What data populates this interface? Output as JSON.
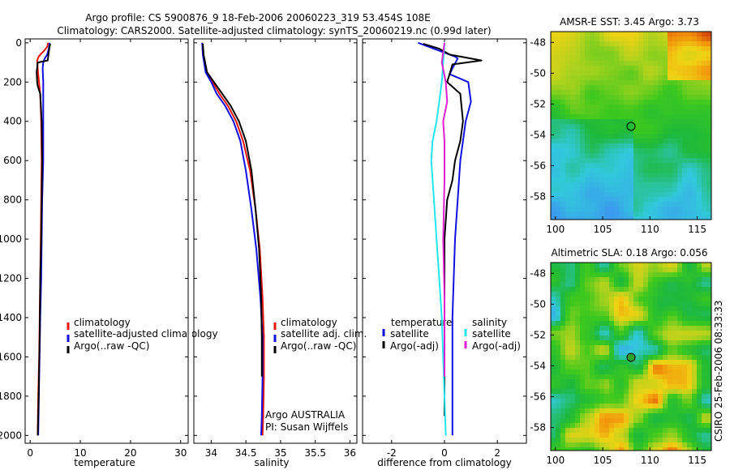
{
  "header": {
    "line1": "Argo profile: CS 5900876_9 18-Feb-2006 20060223_319 53.454S 108E",
    "line2": "Climatology: CARS2000. Satellite-adjusted climatology: synTS_20060219.nc (0.99d later)"
  },
  "footer": {
    "stamp": "CSIRO 25-Feb-2006 08:33:33"
  },
  "colors": {
    "red": "#e8140c",
    "blue": "#1010e0",
    "black": "#000000",
    "cyan": "#22e6ee",
    "magenta": "#e020d0"
  },
  "chart_data": [
    {
      "type": "line",
      "id": "temperature",
      "xlabel": "temperature",
      "ylabel": "",
      "xlim": [
        -1,
        31.5
      ],
      "ylim": [
        2040,
        -20
      ],
      "y_inverted": true,
      "xticks": [
        0,
        10,
        20,
        30
      ],
      "yticks": [
        0,
        200,
        400,
        600,
        800,
        1000,
        1200,
        1400,
        1600,
        1800,
        2000
      ],
      "legend": [
        "climatology",
        "satellite-adjusted climatology",
        "Argo(..raw -QC)"
      ],
      "series": [
        {
          "name": "climatology",
          "color": "red",
          "x": [
            3.6,
            3.4,
            2.8,
            2.2,
            1.7,
            1.4,
            1.5,
            1.6,
            2.0,
            2.2,
            2.3,
            2.2,
            2.1,
            2.0,
            1.9,
            1.8,
            1.6,
            1.5
          ],
          "y": [
            0,
            20,
            40,
            55,
            70,
            90,
            130,
            160,
            260,
            400,
            600,
            800,
            1000,
            1200,
            1400,
            1600,
            1800,
            2000
          ]
        },
        {
          "name": "satellite-adjusted climatology",
          "color": "blue",
          "x": [
            3.9,
            3.7,
            3.4,
            2.9,
            2.6,
            2.5,
            2.6,
            2.6,
            2.6,
            2.4,
            2.3,
            2.2,
            2.0,
            1.8,
            1.6
          ],
          "y": [
            0,
            30,
            60,
            80,
            100,
            130,
            200,
            400,
            600,
            800,
            1000,
            1200,
            1400,
            1700,
            2000
          ]
        },
        {
          "name": "Argo(..raw -QC)",
          "color": "black",
          "x": [
            4.0,
            3.8,
            3.5,
            1.5,
            1.3,
            1.4,
            1.5,
            2.0,
            2.3,
            2.4,
            2.3,
            2.2,
            2.0,
            1.9,
            1.7,
            1.5
          ],
          "y": [
            5,
            30,
            90,
            100,
            150,
            200,
            220,
            260,
            400,
            600,
            800,
            1000,
            1200,
            1500,
            1800,
            2000
          ]
        }
      ]
    },
    {
      "type": "line",
      "id": "salinity",
      "xlabel": "salinity",
      "xlim": [
        33.75,
        36.1
      ],
      "ylim": [
        2040,
        -20
      ],
      "y_inverted": true,
      "xticks": [
        34,
        34.5,
        35,
        35.5,
        36
      ],
      "xticklabels": [
        "34",
        "34.5",
        "35",
        "35.5",
        "36"
      ],
      "legend": [
        "climatology",
        "satellite adj. clim.",
        "Argo(..raw -QC)"
      ],
      "notes": [
        "Argo AUSTRALIA",
        "PI: Susan Wijffels"
      ],
      "series": [
        {
          "name": "climatology",
          "color": "red",
          "x": [
            33.87,
            33.88,
            33.93,
            34.02,
            34.12,
            34.24,
            34.36,
            34.46,
            34.56,
            34.64,
            34.7,
            34.74,
            34.76,
            34.76,
            34.75,
            34.74
          ],
          "y": [
            0,
            60,
            150,
            200,
            260,
            320,
            400,
            500,
            650,
            850,
            1050,
            1300,
            1500,
            1700,
            1900,
            2000
          ]
        },
        {
          "name": "satellite adj. clim.",
          "color": "blue",
          "x": [
            33.87,
            33.88,
            33.92,
            34.0,
            34.08,
            34.2,
            34.32,
            34.42,
            34.5,
            34.58,
            34.65,
            34.71,
            34.74,
            34.74,
            34.73,
            34.72
          ],
          "y": [
            0,
            60,
            150,
            200,
            260,
            320,
            400,
            500,
            650,
            850,
            1050,
            1300,
            1500,
            1700,
            1900,
            2000
          ]
        },
        {
          "name": "Argo(..raw -QC)",
          "color": "black",
          "x": [
            33.88,
            33.89,
            33.94,
            34.04,
            34.16,
            34.28,
            34.4,
            34.5,
            34.58,
            34.64,
            34.69,
            34.72,
            34.73,
            34.73
          ],
          "y": [
            5,
            60,
            150,
            200,
            260,
            320,
            400,
            500,
            650,
            850,
            1050,
            1300,
            1500,
            1700
          ]
        }
      ]
    },
    {
      "type": "line",
      "id": "difference",
      "xlabel": "difference from climatology",
      "xlim": [
        -3.1,
        3.1
      ],
      "ylim": [
        2040,
        -20
      ],
      "y_inverted": true,
      "xticks": [
        -2,
        0,
        2
      ],
      "legend_groups": [
        {
          "title": "temperature",
          "items": [
            "satellite",
            "Argo(-adj)"
          ]
        },
        {
          "title": "salinity",
          "items": [
            "satellite",
            "Argo(-adj)"
          ]
        }
      ],
      "series": [
        {
          "name": "temperature satellite",
          "color": "blue",
          "x": [
            -1.0,
            0.2,
            0.4,
            0.5,
            0.3,
            0.2,
            0.9,
            1.0,
            0.8,
            0.7,
            0.6,
            0.5,
            0.4,
            0.3,
            0.3,
            0.3
          ],
          "y": [
            0,
            60,
            70,
            80,
            130,
            160,
            200,
            300,
            400,
            500,
            600,
            800,
            1000,
            1400,
            1800,
            2000
          ]
        },
        {
          "name": "temperature Argo(-adj)",
          "color": "black",
          "x": [
            -0.8,
            -0.2,
            0.2,
            1.4,
            0.3,
            0.1,
            0.6,
            0.7,
            0.6,
            0.4,
            0.3,
            0.1,
            0.0,
            0.0,
            0.0
          ],
          "y": [
            5,
            30,
            60,
            90,
            110,
            200,
            260,
            400,
            500,
            600,
            700,
            800,
            1000,
            1400,
            1900
          ]
        },
        {
          "name": "salinity satellite",
          "color": "cyan",
          "x": [
            0.0,
            -0.05,
            -0.1,
            -0.2,
            -0.3,
            -0.45,
            -0.5,
            -0.4,
            -0.3,
            -0.2,
            -0.1,
            0.0,
            0.05
          ],
          "y": [
            0,
            100,
            200,
            300,
            400,
            500,
            600,
            800,
            1000,
            1200,
            1400,
            1800,
            2000
          ]
        },
        {
          "name": "salinity Argo(-adj)",
          "color": "magenta",
          "x": [
            0.0,
            -0.1,
            0.05,
            0.1,
            -0.05,
            0.0,
            0.0,
            -0.05,
            0.0,
            0.0
          ],
          "y": [
            0,
            100,
            200,
            300,
            400,
            500,
            700,
            1000,
            1300,
            1700
          ]
        }
      ]
    },
    {
      "type": "heatmap",
      "id": "sst-map",
      "title": "AMSR-E SST: 3.45 Argo: 3.73",
      "xlim": [
        99.5,
        116.5
      ],
      "ylim": [
        -59.5,
        -47.3
      ],
      "xticks": [
        100,
        105,
        110,
        115
      ],
      "yticks": [
        -48,
        -50,
        -52,
        -54,
        -56,
        -58
      ],
      "marker": {
        "lon": 108,
        "lat": -53.45,
        "fill": "none"
      }
    },
    {
      "type": "heatmap",
      "id": "sla-map",
      "title": "Altimetric SLA: 0.18 Argo: 0.056",
      "xlim": [
        99.5,
        116.5
      ],
      "ylim": [
        -59.5,
        -47.3
      ],
      "xticks": [
        100,
        105,
        110,
        115
      ],
      "yticks": [
        -48,
        -50,
        -52,
        -54,
        -56,
        -58
      ],
      "marker": {
        "lon": 108,
        "lat": -53.45,
        "fill": "green"
      }
    }
  ]
}
